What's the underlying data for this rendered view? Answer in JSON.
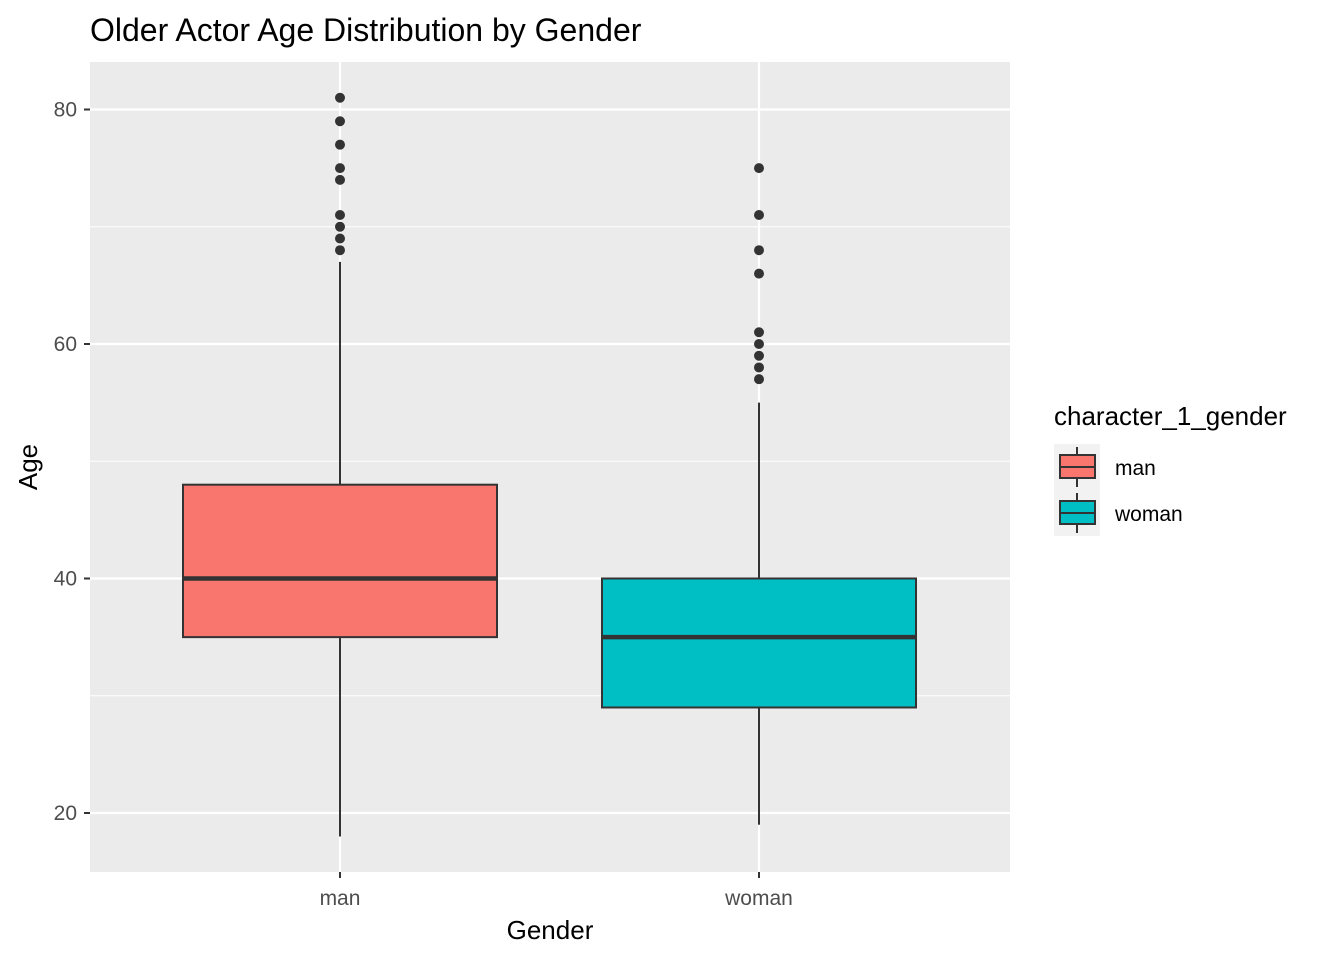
{
  "chart_data": {
    "type": "boxplot",
    "title": "Older Actor Age Distribution by Gender",
    "xlabel": "Gender",
    "ylabel": "Age",
    "ylim": [
      15,
      84
    ],
    "yticks": [
      20,
      40,
      60,
      80
    ],
    "grid": true,
    "legend": {
      "title": "character_1_gender",
      "position": "right",
      "entries": [
        "man",
        "woman"
      ]
    },
    "categories": [
      "man",
      "woman"
    ],
    "series": [
      {
        "category": "man",
        "color": "#F8766D",
        "min": 18,
        "q1": 35,
        "median": 40,
        "q3": 48,
        "max": 67,
        "outliers": [
          68,
          69,
          70,
          71,
          74,
          75,
          77,
          79,
          81
        ]
      },
      {
        "category": "woman",
        "color": "#00BFC4",
        "min": 19,
        "q1": 29,
        "median": 35,
        "q3": 40,
        "max": 55,
        "outliers": [
          57,
          58,
          59,
          60,
          61,
          66,
          68,
          71,
          75
        ]
      }
    ]
  }
}
